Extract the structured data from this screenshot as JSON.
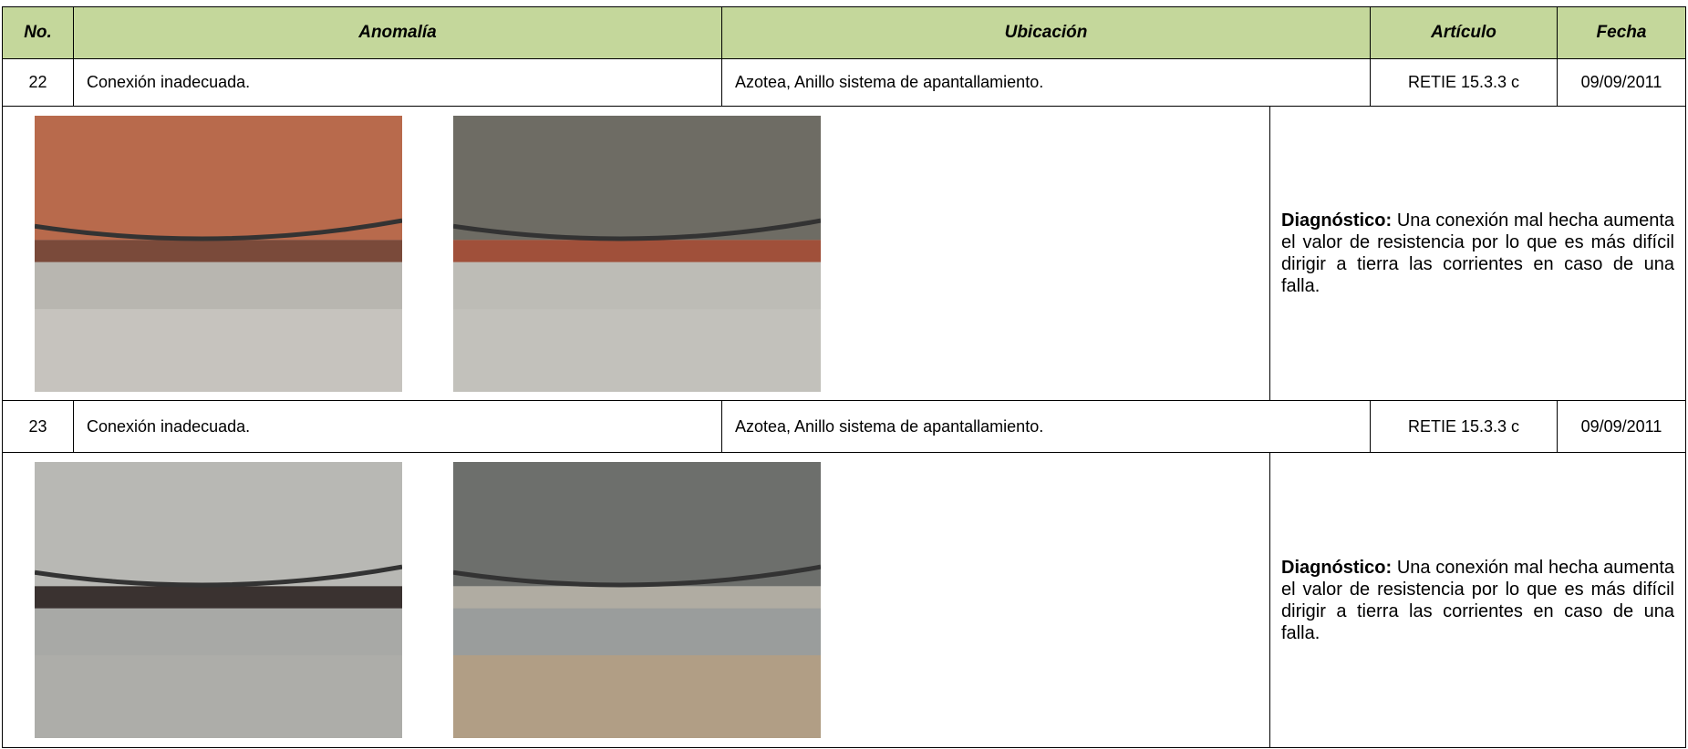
{
  "table": {
    "header": [
      "No.",
      "Anomalía",
      "Ubicación",
      "Artículo",
      "Fecha"
    ],
    "rows": [
      {
        "no": "22",
        "anomaly": "Conexión inadecuada.",
        "location": "Azotea, Anillo sistema de apantallamiento.",
        "article": "RETIE 15.3.3 c",
        "date": "09/09/2011",
        "diagnosis_label": "Diagnóstico:",
        "diagnosis": "Una conexión mal hecha aumenta el valor de resistencia por lo que es más difícil dirigir a tierra las corrientes en caso de una falla."
      },
      {
        "no": "23",
        "anomaly": "Conexión inadecuada.",
        "location": "Azotea, Anillo sistema de apantallamiento.",
        "article": "RETIE 15.3.3 c",
        "date": "09/09/2011",
        "diagnosis_label": "Diagnóstico:",
        "diagnosis": "Una conexión mal hecha aumenta el valor de resistencia por lo que es más difícil dirigir a tierra las corrientes en caso de una falla."
      }
    ]
  }
}
